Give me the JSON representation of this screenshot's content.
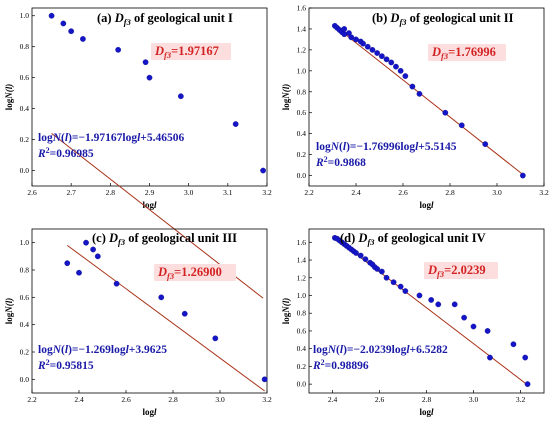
{
  "colors": {
    "point": "#1515c8",
    "fit_line": "#a83218",
    "df_text": "#d42222",
    "df_box": "#fcdede",
    "eq_text": "#1a1aa8"
  },
  "chart_data": [
    {
      "type": "scatter",
      "title_prefix": "(a) ",
      "title_italic": "D",
      "title_sub": "f3",
      "title_suffix": " of geological unit I",
      "df_label": "=1.97167",
      "equation": "logN(l)=−1.97167logl+5.46506",
      "r2_label": "=0.96985",
      "xlabel": "logl",
      "ylabel": "logN(l)",
      "xlim": [
        2.6,
        3.2
      ],
      "ylim": [
        -0.1,
        1.05
      ],
      "xticks": [
        2.6,
        2.7,
        2.8,
        2.9,
        3.0,
        3.1,
        3.2
      ],
      "xtick_labels": [
        "2.6",
        "2.7",
        "2.8",
        "2.9",
        "3.0",
        "3.1",
        "3.2"
      ],
      "yticks": [
        0.0,
        0.2,
        0.4,
        0.6,
        0.8,
        1.0
      ],
      "ytick_labels": [
        "0.0",
        "0.2",
        "0.4",
        "0.6",
        "0.8",
        "1.0"
      ],
      "x": [
        2.65,
        2.68,
        2.7,
        2.73,
        2.82,
        2.89,
        2.9,
        2.98,
        3.12,
        3.19
      ],
      "y": [
        1.0,
        0.95,
        0.9,
        0.85,
        0.78,
        0.7,
        0.6,
        0.48,
        0.3,
        0.0
      ],
      "fit": {
        "slope": -1.97167,
        "intercept": 5.46506,
        "x_range": [
          2.65,
          3.19
        ]
      }
    },
    {
      "type": "scatter",
      "title_prefix": "(b) ",
      "title_italic": "D",
      "title_sub": "f3",
      "title_suffix": " of geological unit II",
      "df_label": "=1.76996",
      "equation": "logN(l)=−1.76996logl+5.5145",
      "r2_label": "=0.9868",
      "xlabel": "logl",
      "ylabel": "logN(l)",
      "xlim": [
        2.2,
        3.2
      ],
      "ylim": [
        -0.1,
        1.6
      ],
      "xticks": [
        2.2,
        2.4,
        2.6,
        2.8,
        3.0,
        3.2
      ],
      "xtick_labels": [
        "2.2",
        "2.4",
        "2.6",
        "2.8",
        "3.0",
        "3.2"
      ],
      "yticks": [
        0.0,
        0.2,
        0.4,
        0.6,
        0.8,
        1.0,
        1.2,
        1.4,
        1.6
      ],
      "ytick_labels": [
        "0.0",
        "0.2",
        "0.4",
        "0.6",
        "0.8",
        "1.0",
        "1.2",
        "1.4",
        "1.6"
      ],
      "x": [
        2.31,
        2.32,
        2.33,
        2.34,
        2.35,
        2.35,
        2.37,
        2.38,
        2.4,
        2.42,
        2.43,
        2.45,
        2.47,
        2.49,
        2.51,
        2.53,
        2.55,
        2.57,
        2.59,
        2.61,
        2.64,
        2.67,
        2.78,
        2.85,
        2.95,
        3.11
      ],
      "y": [
        1.43,
        1.41,
        1.39,
        1.37,
        1.35,
        1.4,
        1.36,
        1.32,
        1.3,
        1.28,
        1.26,
        1.23,
        1.2,
        1.17,
        1.14,
        1.11,
        1.08,
        1.04,
        1.0,
        0.95,
        0.85,
        0.78,
        0.6,
        0.48,
        0.3,
        0.0
      ],
      "fit": {
        "slope": -1.76996,
        "intercept": 5.5145,
        "x_range": [
          2.3,
          3.11
        ]
      }
    },
    {
      "type": "scatter",
      "title_prefix": "(c) ",
      "title_italic": "D",
      "title_sub": "f3",
      "title_suffix": " of geological unit III",
      "df_label": "=1.26900",
      "equation": "logN(l)=−1.269logl+3.9625",
      "r2_label": "=0.95815",
      "xlabel": "logl",
      "ylabel": "logN(l)",
      "xlim": [
        2.2,
        3.2
      ],
      "ylim": [
        -0.1,
        1.1
      ],
      "xticks": [
        2.2,
        2.4,
        2.6,
        2.8,
        3.0,
        3.2
      ],
      "xtick_labels": [
        "2.2",
        "2.4",
        "2.6",
        "2.8",
        "3.0",
        "3.2"
      ],
      "yticks": [
        0.0,
        0.2,
        0.4,
        0.6,
        0.8,
        1.0
      ],
      "ytick_labels": [
        "0.0",
        "0.2",
        "0.4",
        "0.6",
        "0.8",
        "1.0"
      ],
      "x": [
        2.35,
        2.4,
        2.43,
        2.46,
        2.48,
        2.56,
        2.75,
        2.85,
        2.98,
        3.19
      ],
      "y": [
        0.85,
        0.78,
        1.0,
        0.95,
        0.9,
        0.7,
        0.6,
        0.48,
        0.3,
        0.0
      ],
      "fit": {
        "slope": -1.269,
        "intercept": 3.9625,
        "x_range": [
          2.35,
          3.19
        ]
      }
    },
    {
      "type": "scatter",
      "title_prefix": "(d) ",
      "title_italic": "D",
      "title_sub": "f3",
      "title_suffix": " of geological unit IV",
      "df_label": "=2.0239",
      "equation": "logN(l)=−2.0239logl+6.5282",
      "r2_label": "=0.98896",
      "xlabel": "logl",
      "ylabel": "logN(l)",
      "xlim": [
        2.3,
        3.3
      ],
      "ylim": [
        -0.1,
        1.75
      ],
      "xticks": [
        2.4,
        2.6,
        2.8,
        3.0,
        3.2
      ],
      "xtick_labels": [
        "2.4",
        "2.6",
        "2.8",
        "3.0",
        "3.2"
      ],
      "yticks": [
        0.0,
        0.2,
        0.4,
        0.6,
        0.8,
        1.0,
        1.2,
        1.4,
        1.6
      ],
      "ytick_labels": [
        "0.0",
        "0.2",
        "0.4",
        "0.6",
        "0.8",
        "1.0",
        "1.2",
        "1.4",
        "1.6"
      ],
      "x": [
        2.41,
        2.42,
        2.43,
        2.44,
        2.45,
        2.46,
        2.47,
        2.48,
        2.49,
        2.5,
        2.52,
        2.54,
        2.56,
        2.57,
        2.58,
        2.59,
        2.61,
        2.63,
        2.66,
        2.69,
        2.71,
        2.77,
        2.82,
        2.85,
        2.92,
        2.96,
        3.0,
        3.06,
        3.07,
        3.17,
        3.22,
        3.23
      ],
      "y": [
        1.65,
        1.64,
        1.62,
        1.6,
        1.58,
        1.56,
        1.54,
        1.52,
        1.5,
        1.48,
        1.45,
        1.41,
        1.37,
        1.35,
        1.32,
        1.3,
        1.27,
        1.2,
        1.15,
        1.1,
        1.05,
        1.0,
        0.95,
        0.9,
        0.9,
        0.75,
        0.65,
        0.6,
        0.3,
        0.45,
        0.3,
        0.0
      ],
      "fit": {
        "slope": -2.0239,
        "intercept": 6.5282,
        "x_range": [
          2.4,
          3.22
        ]
      }
    }
  ]
}
